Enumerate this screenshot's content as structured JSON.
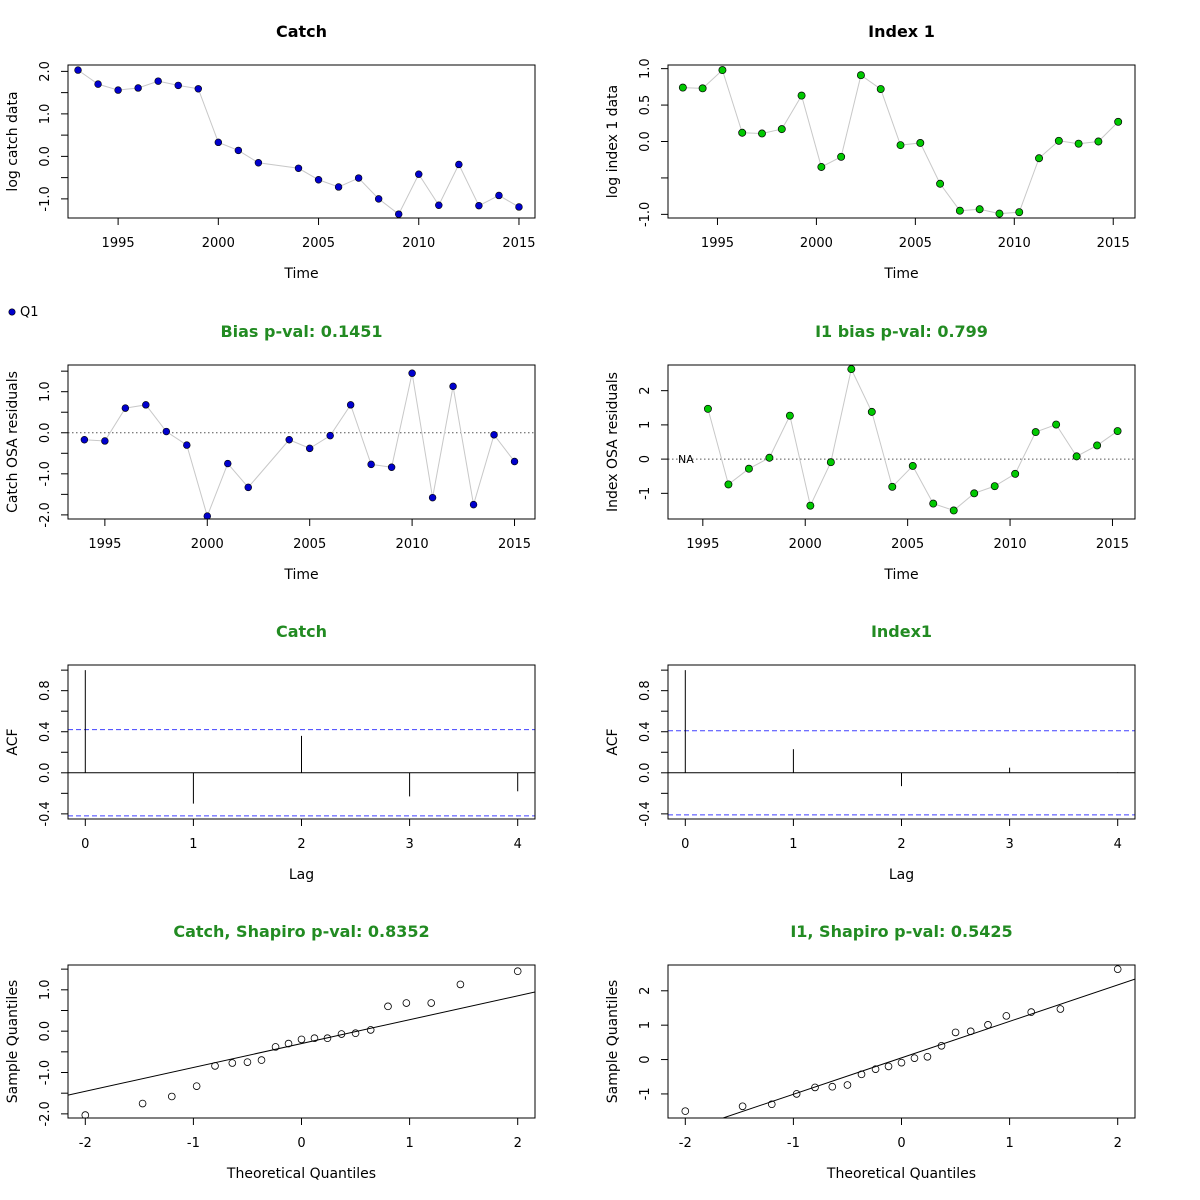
{
  "colors": {
    "title_black": "#000000",
    "title_green": "#228b22",
    "catch_point": "#0000cd",
    "index_point": "#00c800",
    "connector": "#c8c8c8",
    "acf_ci": "#4040ff",
    "zero_line": "#555555"
  },
  "legend": {
    "label": "Q1"
  },
  "chart_data": [
    {
      "id": "catch-data",
      "type": "scatter",
      "title": "Catch",
      "title_color": "black",
      "xlabel": "Time",
      "ylabel": "log catch data",
      "xlim": [
        1992.5,
        2015.8
      ],
      "ylim": [
        -1.45,
        2.15
      ],
      "xticks": [
        1995,
        2000,
        2005,
        2010,
        2015
      ],
      "yticks": [
        -1.0,
        0.0,
        1.0,
        2.0
      ],
      "ytick_labels": [
        "-1.0",
        "0.0",
        "1.0",
        "2.0"
      ],
      "minor_yticks": [
        -0.5,
        0.5,
        1.5
      ],
      "point_style": "catch",
      "connect": true,
      "x": [
        1993,
        1994,
        1995,
        1996,
        1997,
        1998,
        1999,
        2000,
        2001,
        2002,
        2004,
        2005,
        2006,
        2007,
        2008,
        2009,
        2010,
        2011,
        2012,
        2013,
        2014,
        2015
      ],
      "y": [
        2.03,
        1.7,
        1.56,
        1.61,
        1.77,
        1.67,
        1.59,
        0.33,
        0.14,
        -0.15,
        -0.28,
        -0.55,
        -0.72,
        -0.51,
        -1.0,
        -1.36,
        -0.42,
        -1.15,
        -0.19,
        -1.16,
        -0.92,
        -1.19
      ]
    },
    {
      "id": "index-data",
      "type": "scatter",
      "title": "Index 1",
      "title_color": "black",
      "xlabel": "Time",
      "ylabel": "log index 1 data",
      "xlim": [
        1992.5,
        2016.1
      ],
      "ylim": [
        -1.05,
        1.05
      ],
      "xticks": [
        1995,
        2000,
        2005,
        2010,
        2015
      ],
      "yticks": [
        -1.0,
        0.0,
        0.5,
        1.0
      ],
      "ytick_labels": [
        "-1.0",
        "0.0",
        "0.5",
        "1.0"
      ],
      "minor_yticks": [
        -0.5
      ],
      "point_style": "index",
      "connect": true,
      "x": [
        1993.25,
        1994.25,
        1995.25,
        1996.25,
        1997.25,
        1998.25,
        1999.25,
        2000.25,
        2001.25,
        2002.25,
        2003.25,
        2004.25,
        2005.25,
        2006.25,
        2007.25,
        2008.25,
        2009.25,
        2010.25,
        2011.25,
        2012.25,
        2013.25,
        2014.25,
        2015.25
      ],
      "y": [
        0.74,
        0.73,
        0.98,
        0.12,
        0.11,
        0.17,
        0.63,
        -0.35,
        -0.21,
        0.91,
        0.72,
        -0.05,
        -0.02,
        -0.58,
        -0.95,
        -0.93,
        -0.99,
        -0.97,
        -0.23,
        0.01,
        -0.03,
        0.0,
        0.27
      ]
    },
    {
      "id": "catch-osa",
      "type": "scatter",
      "title": "Bias p-val: 0.1451",
      "title_color": "green",
      "xlabel": "Time",
      "ylabel": "Catch OSA residuals",
      "xlim": [
        1993.2,
        2016.0
      ],
      "ylim": [
        -2.1,
        1.65
      ],
      "xticks": [
        1995,
        2000,
        2005,
        2010,
        2015
      ],
      "yticks": [
        -2.0,
        -1.0,
        0.0,
        1.0
      ],
      "ytick_labels": [
        "-2.0",
        "-1.0",
        "0.0",
        "1.0"
      ],
      "minor_yticks": [
        -1.5,
        -0.5,
        0.5,
        1.5
      ],
      "point_style": "catch",
      "connect": true,
      "zero_line": true,
      "x": [
        1994,
        1995,
        1996,
        1997,
        1998,
        1999,
        2000,
        2001,
        2002,
        2004,
        2005,
        2006,
        2007,
        2008,
        2009,
        2010,
        2011,
        2012,
        2013,
        2014,
        2015
      ],
      "y": [
        -0.17,
        -0.2,
        0.6,
        0.68,
        0.03,
        -0.3,
        -2.03,
        -0.75,
        -1.33,
        -0.17,
        -0.38,
        -0.07,
        0.68,
        -0.77,
        -0.84,
        1.45,
        -1.58,
        1.13,
        -1.75,
        -0.05,
        -0.7
      ]
    },
    {
      "id": "index-osa",
      "type": "scatter",
      "title": "I1 bias p-val: 0.799",
      "title_color": "green",
      "xlabel": "Time",
      "ylabel": "Index OSA residuals",
      "xlim": [
        1993.3,
        2016.1
      ],
      "ylim": [
        -1.75,
        2.75
      ],
      "xticks": [
        1995,
        2000,
        2005,
        2010,
        2015
      ],
      "yticks": [
        -1,
        0,
        1,
        2
      ],
      "ytick_labels": [
        "-1",
        "0",
        "1",
        "2"
      ],
      "minor_yticks": [],
      "point_style": "index",
      "connect": true,
      "zero_line": true,
      "na_label": "NA",
      "x": [
        1995.25,
        1996.25,
        1997.25,
        1998.25,
        1999.25,
        2000.25,
        2001.25,
        2002.25,
        2003.25,
        2004.25,
        2005.25,
        2006.25,
        2007.25,
        2008.25,
        2009.25,
        2010.25,
        2011.25,
        2012.25,
        2013.25,
        2014.25,
        2015.25
      ],
      "y": [
        1.47,
        -0.74,
        -0.28,
        0.04,
        1.27,
        -1.36,
        -0.09,
        2.63,
        1.38,
        -0.81,
        -0.2,
        -1.3,
        -1.5,
        -1.0,
        -0.79,
        -0.43,
        0.79,
        1.01,
        0.08,
        0.4,
        0.82
      ]
    },
    {
      "id": "catch-acf",
      "type": "bar",
      "title": "Catch",
      "title_color": "green",
      "xlabel": "Lag",
      "ylabel": "ACF",
      "xlim": [
        -0.16,
        4.16
      ],
      "ylim": [
        -0.45,
        1.05
      ],
      "xticks": [
        0,
        1,
        2,
        3,
        4
      ],
      "yticks": [
        -0.4,
        0.0,
        0.4,
        0.8
      ],
      "ytick_labels": [
        "-0.4",
        "0.0",
        "0.4",
        "0.8"
      ],
      "minor_yticks": [
        -0.2,
        0.2,
        0.6,
        1.0
      ],
      "zero_line": true,
      "ci": 0.42,
      "lags": [
        0,
        1,
        2,
        3,
        4
      ],
      "values": [
        1.0,
        -0.3,
        0.36,
        -0.23,
        -0.18
      ]
    },
    {
      "id": "index-acf",
      "type": "bar",
      "title": "Index1",
      "title_color": "green",
      "xlabel": "Lag",
      "ylabel": "ACF",
      "xlim": [
        -0.16,
        4.16
      ],
      "ylim": [
        -0.45,
        1.05
      ],
      "xticks": [
        0,
        1,
        2,
        3,
        4
      ],
      "yticks": [
        -0.4,
        0.0,
        0.4,
        0.8
      ],
      "ytick_labels": [
        "-0.4",
        "0.0",
        "0.4",
        "0.8"
      ],
      "minor_yticks": [
        -0.2,
        0.2,
        0.6,
        1.0
      ],
      "zero_line": true,
      "ci": 0.41,
      "lags": [
        0,
        1,
        2,
        3,
        4
      ],
      "values": [
        1.0,
        0.23,
        -0.13,
        0.05,
        0.005
      ]
    },
    {
      "id": "catch-qq",
      "type": "scatter",
      "title": "Catch, Shapiro p-val: 0.8352",
      "title_color": "green",
      "xlabel": "Theoretical Quantiles",
      "ylabel": "Sample Quantiles",
      "xlim": [
        -2.16,
        2.16
      ],
      "ylim": [
        -2.1,
        1.6
      ],
      "xticks": [
        -2,
        -1,
        0,
        1,
        2
      ],
      "yticks": [
        -2.0,
        -1.0,
        0.0,
        1.0
      ],
      "ytick_labels": [
        "-2.0",
        "-1.0",
        "0.0",
        "1.0"
      ],
      "minor_yticks": [
        -1.5,
        -0.5,
        0.5,
        1.5
      ],
      "point_style": "open",
      "connect": false,
      "qq_line": {
        "slope": 0.577,
        "intercept": -0.3
      },
      "x": [
        -2.0,
        -1.47,
        -1.2,
        -0.97,
        -0.8,
        -0.64,
        -0.5,
        -0.37,
        -0.24,
        -0.12,
        0.0,
        0.12,
        0.24,
        0.37,
        0.5,
        0.64,
        0.8,
        0.97,
        1.2,
        1.47,
        2.0
      ],
      "y": [
        -2.03,
        -1.75,
        -1.58,
        -1.33,
        -0.84,
        -0.77,
        -0.75,
        -0.7,
        -0.38,
        -0.3,
        -0.2,
        -0.17,
        -0.17,
        -0.07,
        -0.05,
        0.03,
        0.6,
        0.68,
        0.68,
        1.13,
        1.45
      ]
    },
    {
      "id": "index-qq",
      "type": "scatter",
      "title": "I1, Shapiro p-val: 0.5425",
      "title_color": "green",
      "xlabel": "Theoretical Quantiles",
      "ylabel": "Sample Quantiles",
      "xlim": [
        -2.16,
        2.16
      ],
      "ylim": [
        -1.7,
        2.75
      ],
      "xticks": [
        -2,
        -1,
        0,
        1,
        2
      ],
      "yticks": [
        -1,
        0,
        1,
        2
      ],
      "ytick_labels": [
        "-1",
        "0",
        "1",
        "2"
      ],
      "minor_yticks": [],
      "point_style": "open",
      "connect": false,
      "qq_line": {
        "slope": 1.06,
        "intercept": 0.05
      },
      "x": [
        -2.0,
        -1.47,
        -1.2,
        -0.97,
        -0.8,
        -0.64,
        -0.5,
        -0.37,
        -0.24,
        -0.12,
        0.0,
        0.12,
        0.24,
        0.37,
        0.5,
        0.64,
        0.8,
        0.97,
        1.2,
        1.47,
        2.0
      ],
      "y": [
        -1.5,
        -1.36,
        -1.3,
        -1.0,
        -0.81,
        -0.79,
        -0.74,
        -0.43,
        -0.28,
        -0.2,
        -0.09,
        0.04,
        0.08,
        0.4,
        0.79,
        0.82,
        1.01,
        1.27,
        1.38,
        1.47,
        2.63
      ]
    }
  ]
}
